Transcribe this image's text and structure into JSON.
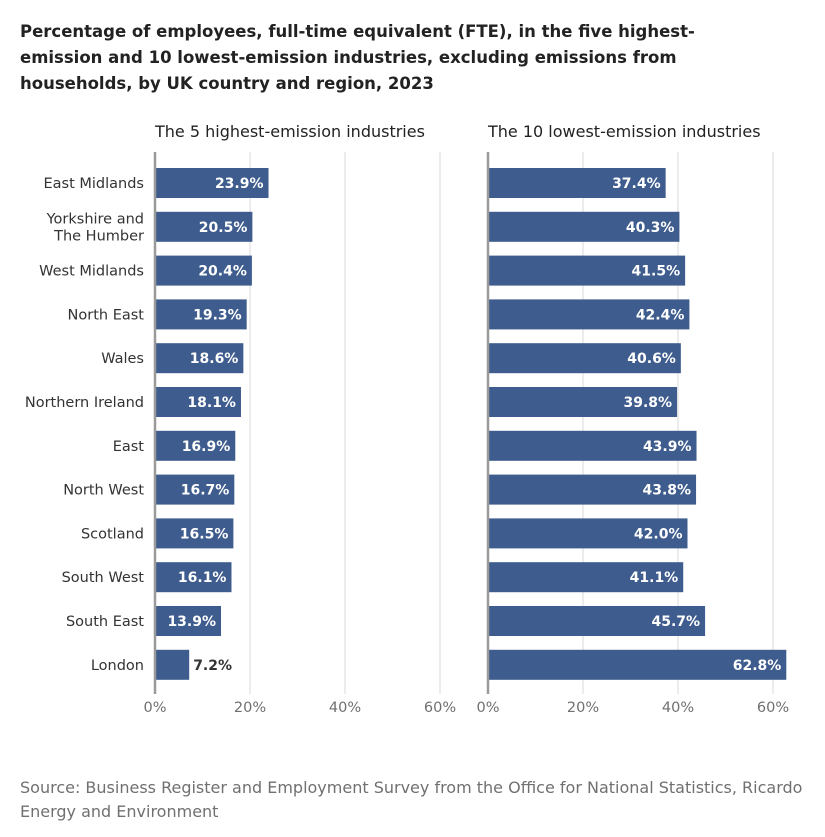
{
  "chart_data": {
    "type": "bar",
    "title": "Percentage of employees, full-time equivalent (FTE), in the five highest-emission and 10 lowest-emission industries, excluding emissions from households, by UK country and region, 2023",
    "categories": [
      "East Midlands",
      "Yorkshire and The Humber",
      "West Midlands",
      "North East",
      "Wales",
      "Northern Ireland",
      "East",
      "North West",
      "Scotland",
      "South West",
      "South East",
      "London"
    ],
    "category_lines": [
      [
        "East Midlands"
      ],
      [
        "Yorkshire and",
        "The Humber"
      ],
      [
        "West Midlands"
      ],
      [
        "North East"
      ],
      [
        "Wales"
      ],
      [
        "Northern Ireland"
      ],
      [
        "East"
      ],
      [
        "North West"
      ],
      [
        "Scotland"
      ],
      [
        "South West"
      ],
      [
        "South East"
      ],
      [
        "London"
      ]
    ],
    "series": [
      {
        "name": "The 5 highest-emission industries",
        "values": [
          23.9,
          20.5,
          20.4,
          19.3,
          18.6,
          18.1,
          16.9,
          16.7,
          16.5,
          16.1,
          13.9,
          7.2
        ],
        "labels": [
          "23.9%",
          "20.5%",
          "20.4%",
          "19.3%",
          "18.6%",
          "18.1%",
          "16.9%",
          "16.7%",
          "16.5%",
          "16.1%",
          "13.9%",
          "7.2%"
        ]
      },
      {
        "name": "The 10 lowest-emission industries",
        "values": [
          37.4,
          40.3,
          41.5,
          42.4,
          40.6,
          39.8,
          43.9,
          43.8,
          42.0,
          41.1,
          45.7,
          62.8
        ],
        "labels": [
          "37.4%",
          "40.3%",
          "41.5%",
          "42.4%",
          "40.6%",
          "39.8%",
          "43.9%",
          "43.8%",
          "42.0%",
          "41.1%",
          "45.7%",
          "62.8%"
        ]
      }
    ],
    "xticks": [
      0,
      20,
      40,
      60
    ],
    "xtick_labels": [
      "0%",
      "20%",
      "40%",
      "60%"
    ],
    "xlim": [
      0,
      63
    ],
    "grid": true,
    "bar_color": "#3e5c8d"
  },
  "source": "Source: Business Register and Employment Survey from the Office for National Statistics, Ricardo Energy and Environment"
}
